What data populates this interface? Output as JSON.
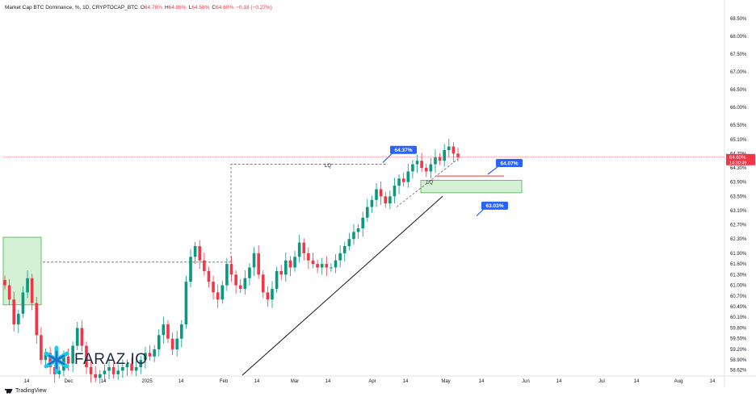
{
  "header": {
    "title": "Market Cap BTC Dominance, %, 1D, CRYPTOCAP_BTC",
    "ohlc": [
      {
        "label": "O",
        "value": "64.78%"
      },
      {
        "label": "H",
        "value": "64.86%"
      },
      {
        "label": "L",
        "value": "64.58%"
      },
      {
        "label": "C",
        "value": "64.60%"
      }
    ],
    "change": "−0.18 (−0.27%)"
  },
  "watermark": "FARAZ.IO",
  "footer": {
    "brand": "TradingView"
  },
  "colors": {
    "up": "#089981",
    "down": "#f23645",
    "zone": "#d4f0d4",
    "zone_border": "#4caf50",
    "badge": "#2962ff",
    "grid": "#f0f3fa"
  },
  "chart_data": {
    "type": "candlestick",
    "title": "Market Cap BTC Dominance, %, 1D, CRYPTOCAP_BTC",
    "ylim": [
      58.45,
      68.7
    ],
    "y_ticks": [
      "68.50%",
      "68.00%",
      "67.50%",
      "67.00%",
      "66.50%",
      "66.00%",
      "65.50%",
      "65.10%",
      "64.70%",
      "64.30%",
      "63.90%",
      "63.50%",
      "63.10%",
      "62.70%",
      "62.30%",
      "61.90%",
      "61.60%",
      "61.30%",
      "61.00%",
      "60.70%",
      "60.40%",
      "60.10%",
      "59.80%",
      "59.50%",
      "59.20%",
      "58.90%",
      "58.62%"
    ],
    "x_ticks": [
      "14",
      "Dec",
      "14",
      "2025",
      "14",
      "Feb",
      "14",
      "Mar",
      "14",
      "Apr",
      "14",
      "May",
      "14",
      "Jun",
      "14",
      "Jul",
      "14",
      "Aug",
      "14"
    ],
    "current_price": {
      "value": 64.6,
      "label": "64.60%",
      "countdown": "14:30:49"
    },
    "annotations": [
      {
        "type": "badge",
        "text": "64.37%",
        "value": 64.37
      },
      {
        "type": "badge",
        "text": "64.07%",
        "value": 64.07
      },
      {
        "type": "badge",
        "text": "63.03%",
        "value": 63.03
      },
      {
        "type": "label",
        "text": "LQ",
        "value": 64.37
      },
      {
        "type": "label",
        "text": "LQ",
        "value": 63.9
      }
    ],
    "price_path": [
      61.0,
      60.6,
      59.9,
      60.2,
      60.8,
      61.2,
      60.5,
      59.6,
      58.9,
      59.1,
      58.7,
      58.5,
      58.6,
      59.0,
      58.8,
      59.3,
      59.8,
      59.3,
      58.7,
      58.5,
      58.4,
      58.5,
      58.6,
      58.7,
      58.5,
      58.6,
      58.7,
      58.8,
      58.6,
      58.7,
      58.9,
      59.1,
      59.0,
      59.2,
      59.6,
      59.9,
      59.5,
      59.2,
      59.5,
      59.9,
      61.1,
      61.8,
      62.1,
      61.7,
      61.4,
      61.1,
      60.8,
      60.6,
      61.0,
      61.6,
      61.3,
      61.0,
      60.9,
      61.2,
      61.5,
      61.9,
      61.3,
      60.8,
      60.6,
      60.9,
      61.4,
      61.3,
      61.7,
      61.5,
      61.8,
      62.2,
      61.9,
      61.7,
      61.6,
      61.5,
      61.6,
      61.5,
      61.5,
      61.7,
      61.9,
      62.1,
      62.3,
      62.5,
      62.6,
      62.9,
      63.2,
      63.4,
      63.7,
      63.5,
      63.3,
      63.5,
      63.8,
      64.0,
      63.9,
      64.2,
      64.4,
      64.5,
      64.3,
      64.2,
      64.4,
      64.6,
      64.5,
      64.8,
      64.9,
      64.7,
      64.6
    ]
  }
}
